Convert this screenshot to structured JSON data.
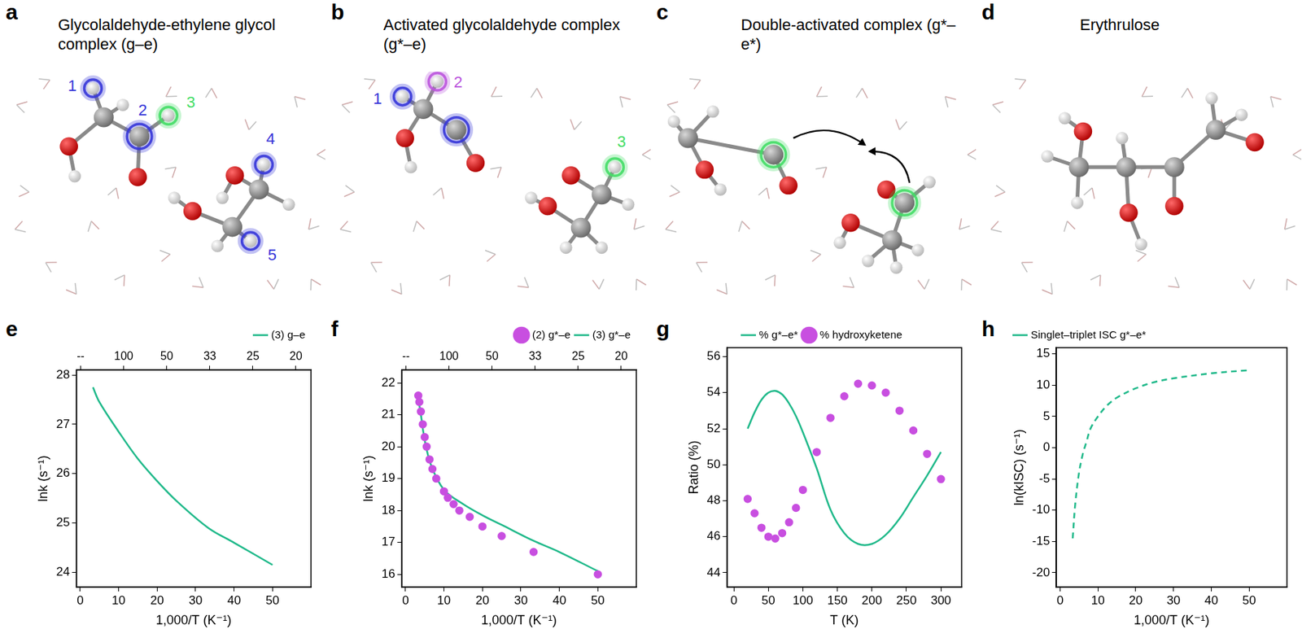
{
  "structures": [
    {
      "panel": "a",
      "title": "Glycolaldehyde-ethylene glycol complex (g–e)",
      "highlights": [
        {
          "label": "1",
          "color": "#3636d8"
        },
        {
          "label": "2",
          "color": "#3636d8"
        },
        {
          "label": "3",
          "color": "#44dd66"
        },
        {
          "label": "4",
          "color": "#3636d8"
        },
        {
          "label": "5",
          "color": "#3636d8"
        }
      ]
    },
    {
      "panel": "b",
      "title": "Activated glycolaldehyde complex (g*–e)",
      "highlights": [
        {
          "label": "1",
          "color": "#3636d8"
        },
        {
          "label": "2",
          "color": "#bb55dd"
        },
        {
          "color": "#3636d8"
        },
        {
          "label": "3",
          "color": "#44dd66"
        }
      ]
    },
    {
      "panel": "c",
      "title": "Double-activated complex (g*–e*)",
      "highlights": [
        {
          "color": "#44dd66"
        },
        {
          "color": "#44dd66"
        }
      ]
    },
    {
      "panel": "d",
      "title": "Erythrulose",
      "highlights": []
    }
  ],
  "chart_data": [
    {
      "panel": "e",
      "type": "line",
      "x_label": "1,000/T (K⁻¹)",
      "y_label": "lnk (s⁻¹)",
      "xlim": [
        -1,
        60
      ],
      "xticks": [
        0,
        10,
        20,
        30,
        40,
        50
      ],
      "x2lim": [
        -0.1,
        5.35
      ],
      "x2ticks": [
        {
          "value": 0,
          "label": "--"
        },
        {
          "value": 1,
          "label": "100"
        },
        {
          "value": 2,
          "label": "50"
        },
        {
          "value": 3,
          "label": "33"
        },
        {
          "value": 4,
          "label": "25"
        },
        {
          "value": 5,
          "label": "20"
        }
      ],
      "ylim": [
        23.7,
        28.1
      ],
      "yticks": [
        24,
        25,
        26,
        27,
        28
      ],
      "grid": false,
      "legend": "top right",
      "series": [
        {
          "name": "(3) g–e",
          "color": "#20b98a",
          "type": "line",
          "line_style": "solid",
          "x": [
            3.33,
            5,
            10,
            15,
            20,
            25,
            33.3,
            40,
            50
          ],
          "values": [
            27.75,
            27.45,
            26.85,
            26.3,
            25.85,
            25.45,
            24.9,
            24.6,
            24.15
          ]
        }
      ]
    },
    {
      "panel": "f",
      "type": "line",
      "x_label": "1,000/T (K⁻¹)",
      "y_label": "lnk (s⁻¹)",
      "xlim": [
        -1,
        60
      ],
      "xticks": [
        0,
        10,
        20,
        30,
        40,
        50
      ],
      "x2lim": [
        -0.1,
        5.35
      ],
      "x2ticks": [
        {
          "value": 0,
          "label": "--"
        },
        {
          "value": 1,
          "label": "100"
        },
        {
          "value": 2,
          "label": "50"
        },
        {
          "value": 3,
          "label": "33"
        },
        {
          "value": 4,
          "label": "25"
        },
        {
          "value": 5,
          "label": "20"
        }
      ],
      "ylim": [
        15.6,
        22.4
      ],
      "yticks": [
        16,
        17,
        18,
        19,
        20,
        21,
        22
      ],
      "grid": false,
      "legend": "top right",
      "series": [
        {
          "name": "(2) g*–e",
          "color": "#c84fe0",
          "type": "scatter",
          "marker": "circle",
          "x": [
            3.33,
            3.6,
            4,
            4.5,
            5,
            5.5,
            6.25,
            7,
            8,
            10,
            11,
            12.5,
            14,
            16.7,
            20,
            25,
            33.3,
            50
          ],
          "values": [
            21.6,
            21.4,
            21.1,
            20.7,
            20.3,
            20.0,
            19.6,
            19.3,
            19.0,
            18.6,
            18.4,
            18.2,
            18.0,
            17.8,
            17.5,
            17.2,
            16.7,
            16.0
          ]
        },
        {
          "name": "(3) g*–e",
          "color": "#20b98a",
          "type": "line",
          "line_style": "solid",
          "x": [
            3.33,
            4,
            5,
            6.7,
            10,
            15,
            20,
            25,
            33.3,
            40,
            50
          ],
          "values": [
            21.5,
            21.0,
            20.2,
            19.4,
            18.65,
            18.2,
            17.85,
            17.55,
            17.05,
            16.7,
            16.1
          ]
        }
      ]
    },
    {
      "panel": "g",
      "type": "line",
      "x_label": "T (K)",
      "y_label": "Ratio (%)",
      "xlim": [
        -10,
        330
      ],
      "xticks": [
        0,
        50,
        100,
        150,
        200,
        250,
        300
      ],
      "ylim": [
        43.2,
        56.5
      ],
      "yticks": [
        44,
        46,
        48,
        50,
        52,
        54,
        56
      ],
      "grid": false,
      "legend": "top",
      "series": [
        {
          "name": "% g*–e*",
          "color": "#20b98a",
          "type": "line",
          "line_style": "solid",
          "x": [
            20,
            30,
            40,
            50,
            60,
            70,
            80,
            90,
            100,
            120,
            140,
            160,
            180,
            200,
            220,
            240,
            260,
            280,
            300
          ],
          "values": [
            52,
            52.9,
            53.6,
            54,
            54.1,
            53.9,
            53.4,
            52.7,
            51.8,
            49.8,
            47.5,
            46.2,
            45.6,
            45.6,
            46.1,
            47,
            48.2,
            49.4,
            50.7
          ]
        },
        {
          "name": "% hydroxyketene",
          "color": "#c84fe0",
          "type": "scatter",
          "marker": "circle",
          "x": [
            20,
            30,
            40,
            50,
            60,
            70,
            80,
            90,
            100,
            120,
            140,
            160,
            180,
            200,
            220,
            240,
            260,
            280,
            300
          ],
          "values": [
            48.1,
            47.3,
            46.5,
            46,
            45.9,
            46.2,
            46.8,
            47.6,
            48.6,
            50.7,
            52.6,
            53.8,
            54.5,
            54.4,
            54,
            53,
            51.9,
            50.6,
            49.2
          ]
        }
      ]
    },
    {
      "panel": "h",
      "type": "line",
      "x_label": "1,000/T (K⁻¹)",
      "y_label": "ln(kISC) (s⁻¹)",
      "xlim": [
        -1,
        60
      ],
      "xticks": [
        0,
        10,
        20,
        30,
        40,
        50
      ],
      "ylim": [
        -22.3,
        16
      ],
      "yticks": [
        -20,
        -15,
        -10,
        -5,
        0,
        5,
        10,
        15
      ],
      "grid": false,
      "legend": "top left",
      "series": [
        {
          "name": "Singlet–triplet ISC g*–e*",
          "color": "#20b98a",
          "type": "line",
          "line_style": "dashed",
          "x": [
            3.33,
            4,
            5,
            6,
            7,
            8,
            10,
            12.5,
            15,
            20,
            25,
            30,
            40,
            50
          ],
          "values": [
            -14.5,
            -9,
            -4,
            -1,
            1,
            3,
            5,
            6.8,
            8,
            9.5,
            10.5,
            11.1,
            11.9,
            12.4
          ]
        }
      ]
    }
  ]
}
